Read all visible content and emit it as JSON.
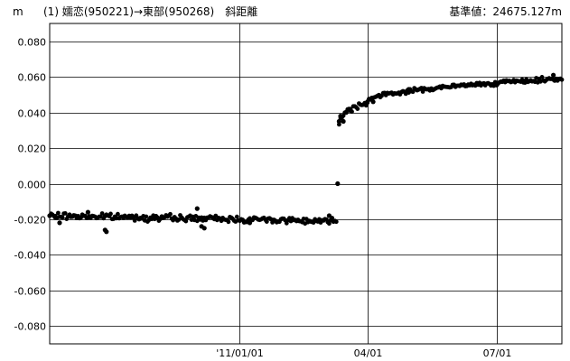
{
  "header": {
    "unit": "m",
    "title": "(1) 嬬恋(950221)→東部(950268)　斜距離",
    "base_value": "基準値：24675.127m"
  },
  "chart_data": {
    "type": "scatter",
    "title": "(1) 嬬恋(950221)→東部(950268)　斜距離",
    "ylabel": "m",
    "xlabel": "",
    "ylim": [
      -0.09,
      0.09
    ],
    "xlim": [
      "2010-08-20",
      "2011-08-16"
    ],
    "yticks": [
      -0.08,
      -0.06,
      -0.04,
      -0.02,
      0.0,
      0.02,
      0.04,
      0.06,
      0.08
    ],
    "ytick_labels": [
      "-0.080",
      "-0.060",
      "-0.040",
      "-0.020",
      "0.000",
      "0.020",
      "0.040",
      "0.060",
      "0.080"
    ],
    "xticks": [
      "2011-01-01",
      "2011-04-01",
      "2011-07-01"
    ],
    "xtick_labels": [
      "'11/01/01",
      "04/01",
      "07/01"
    ],
    "grid": true,
    "series": [
      {
        "color": "#000000",
        "segments": [
          {
            "x_start": "2010-08-20",
            "x_end": "2011-03-10",
            "y_start": -0.018,
            "y_end": -0.021,
            "scatter": 0.0025
          },
          {
            "x_start": "2011-03-12",
            "x_end": "2011-04-01",
            "y_start": 0.035,
            "y_end": 0.046,
            "scatter": 0.0025
          },
          {
            "x_start": "2011-04-01",
            "x_end": "2011-08-16",
            "y_start": 0.046,
            "y_end": 0.059,
            "scatter": 0.0018
          }
        ],
        "points": [
          {
            "x": "2010-08-20",
            "y": -0.018
          },
          {
            "x": "2010-08-24",
            "y": -0.019
          },
          {
            "x": "2010-08-27",
            "y": -0.022
          },
          {
            "x": "2010-09-16",
            "y": -0.016
          },
          {
            "x": "2010-09-28",
            "y": -0.026
          },
          {
            "x": "2010-09-29",
            "y": -0.027
          },
          {
            "x": "2010-12-02",
            "y": -0.014
          },
          {
            "x": "2010-12-05",
            "y": -0.024
          },
          {
            "x": "2010-12-07",
            "y": -0.025
          },
          {
            "x": "2011-01-08",
            "y": -0.022
          },
          {
            "x": "2011-03-05",
            "y": -0.018
          },
          {
            "x": "2011-03-09",
            "y": -0.021
          },
          {
            "x": "2011-03-11",
            "y": 0.0
          },
          {
            "x": "2011-03-12",
            "y": 0.035
          },
          {
            "x": "2011-03-13",
            "y": 0.038
          },
          {
            "x": "2011-03-15",
            "y": 0.035
          },
          {
            "x": "2011-03-17",
            "y": 0.04
          },
          {
            "x": "2011-03-20",
            "y": 0.041
          },
          {
            "x": "2011-04-05",
            "y": 0.046
          },
          {
            "x": "2011-04-30",
            "y": 0.053
          },
          {
            "x": "2011-06-10",
            "y": 0.055
          },
          {
            "x": "2011-07-20",
            "y": 0.057
          },
          {
            "x": "2011-08-10",
            "y": 0.061
          }
        ]
      }
    ]
  }
}
